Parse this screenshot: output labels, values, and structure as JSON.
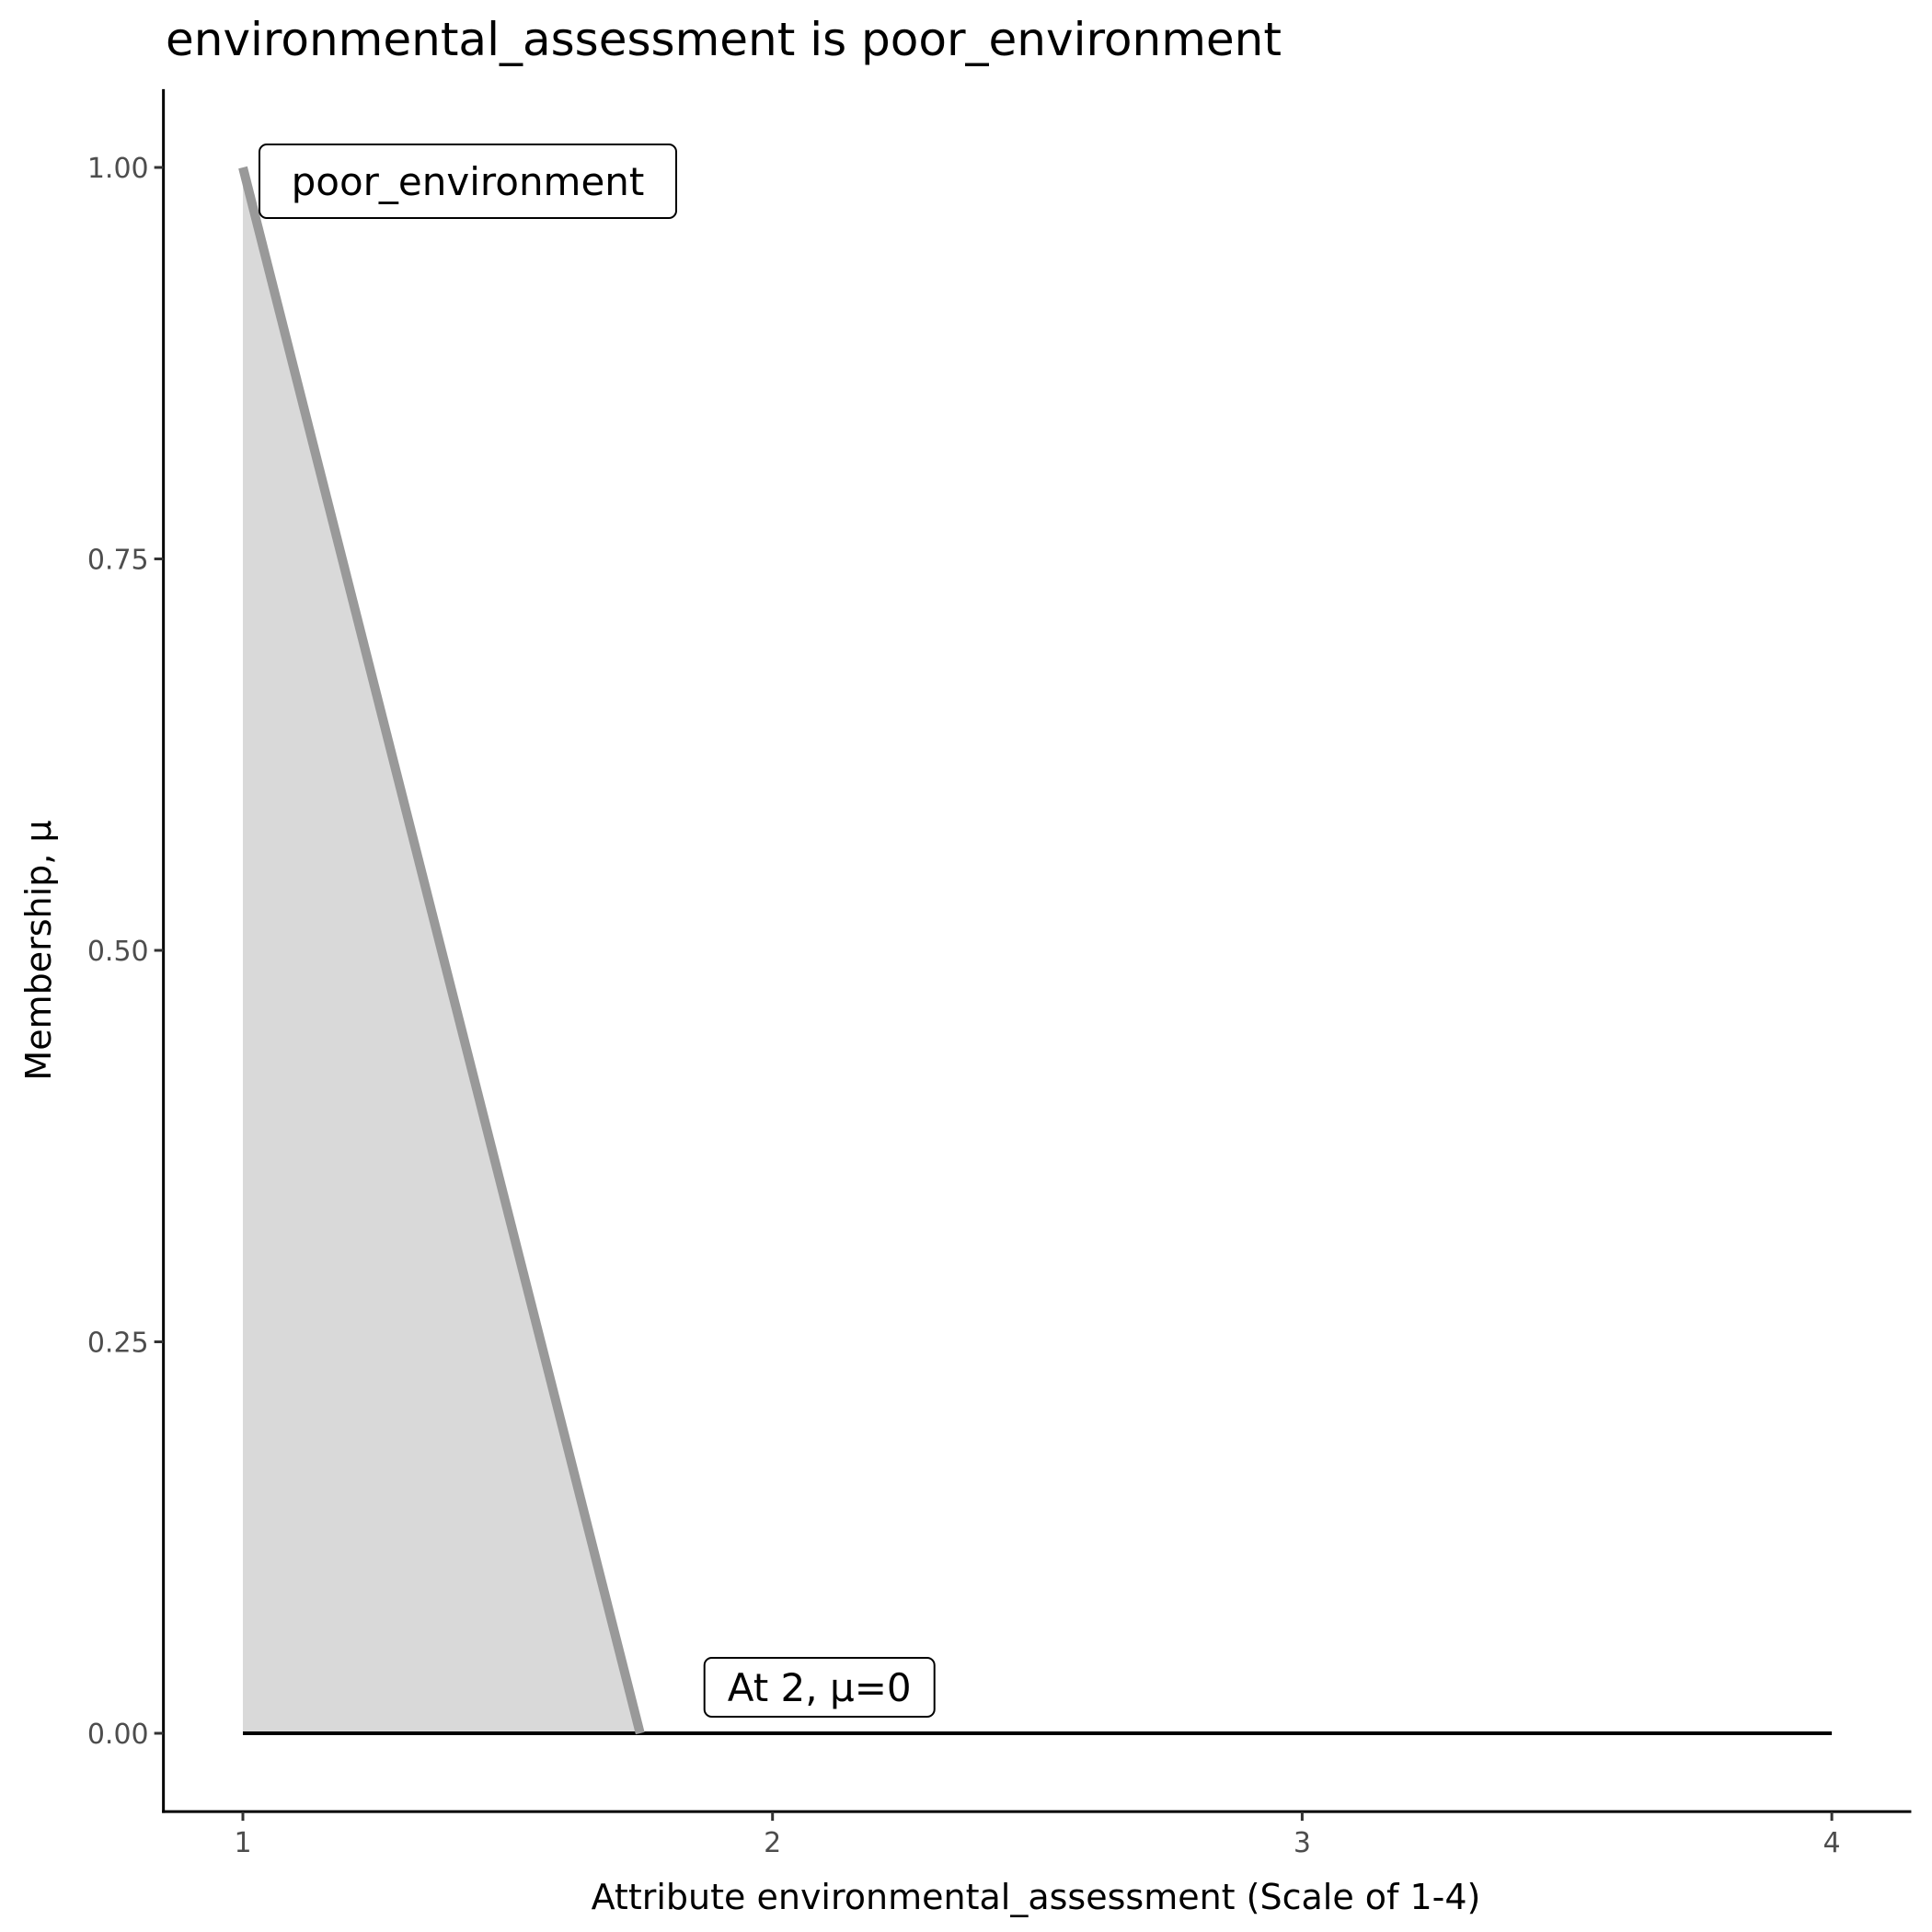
{
  "chart_data": {
    "type": "area",
    "title": "environmental_assessment is poor_environment",
    "xlabel": "Attribute environmental_assessment (Scale of 1-4)",
    "ylabel": "Membership, μ",
    "xlim": [
      0.85,
      4.15
    ],
    "ylim": [
      -0.05,
      1.05
    ],
    "x_ticks": [
      1,
      2,
      3,
      4
    ],
    "x_tick_labels": [
      "1",
      "2",
      "3",
      "4"
    ],
    "y_ticks": [
      0,
      0.25,
      0.5,
      0.75,
      1
    ],
    "y_tick_labels": [
      "0.00",
      "0.25",
      "0.50",
      "0.75",
      "1.00"
    ],
    "grid": false,
    "series": [
      {
        "name": "poor_environment",
        "x": [
          1,
          1.75
        ],
        "y": [
          1,
          0
        ],
        "color": "#999999",
        "fill": "#d9d9d9"
      }
    ],
    "baseline": {
      "x": [
        1,
        4
      ],
      "y": [
        0,
        0
      ],
      "color": "#000000"
    },
    "annotations": [
      {
        "text": "poor_environment",
        "x": 1,
        "y": 1
      },
      {
        "text": "At 2, μ=0",
        "x": 2,
        "y": 0
      }
    ]
  }
}
